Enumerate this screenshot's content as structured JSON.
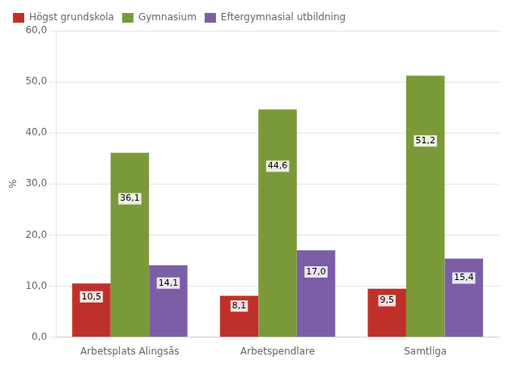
{
  "chart_data": {
    "type": "bar",
    "categories": [
      "Arbetsplats Alingsås",
      "Arbetspendlare",
      "Samtliga"
    ],
    "series": [
      {
        "name": "Högst grundskola",
        "color": "#C0302A",
        "values": [
          10.5,
          8.1,
          9.5
        ],
        "value_labels": [
          "10,5",
          "8,1",
          "9,5"
        ]
      },
      {
        "name": "Gymnasium",
        "color": "#7A9A3A",
        "values": [
          36.1,
          44.6,
          51.2
        ],
        "value_labels": [
          "36,1",
          "44,6",
          "51,2"
        ]
      },
      {
        "name": "Eftergymnasial utbildning",
        "color": "#7B5EA7",
        "values": [
          14.1,
          17.0,
          15.4
        ],
        "value_labels": [
          "14,1",
          "17,0",
          "15,4"
        ]
      }
    ],
    "ylabel": "%",
    "ylim": [
      0,
      60
    ],
    "yticks": [
      {
        "value": 0,
        "label": "0,0"
      },
      {
        "value": 10,
        "label": "10,0"
      },
      {
        "value": 20,
        "label": "20,0"
      },
      {
        "value": 30,
        "label": "30,0"
      },
      {
        "value": 40,
        "label": "40,0"
      },
      {
        "value": 50,
        "label": "50,0"
      },
      {
        "value": 60,
        "label": "60,0"
      }
    ],
    "grid": true,
    "legend": "top",
    "data_labels": true
  }
}
